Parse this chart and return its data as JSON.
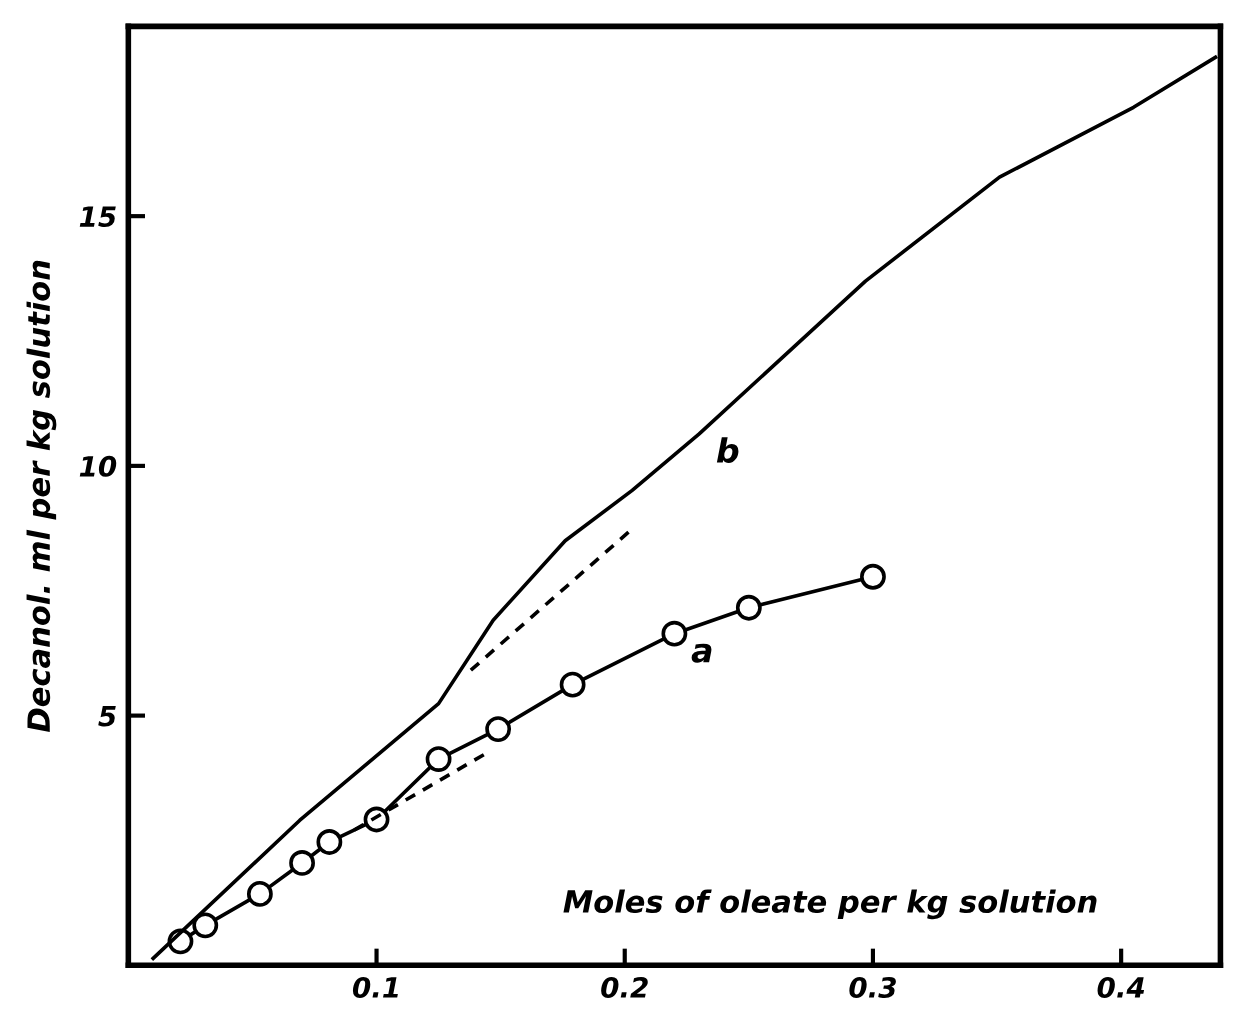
{
  "chart_data": {
    "type": "line",
    "xlabel": "Moles of oleate per kg solution",
    "ylabel": "Decanol. ml per kg solution",
    "xlim": [
      0,
      0.44
    ],
    "ylim": [
      0,
      18.8
    ],
    "xticks": [
      0.1,
      0.2,
      0.3,
      0.4
    ],
    "yticks": [
      5,
      10,
      15
    ],
    "grid": false,
    "legend": false,
    "series": [
      {
        "name": "a",
        "color": "#000000",
        "marker": "circle",
        "line_style": "solid",
        "x": [
          0.021,
          0.031,
          0.053,
          0.07,
          0.081,
          0.1,
          0.125,
          0.149,
          0.179,
          0.22,
          0.25,
          0.3
        ],
        "values": [
          0.48,
          0.8,
          1.43,
          2.05,
          2.47,
          2.92,
          4.13,
          4.73,
          5.62,
          6.64,
          7.16,
          7.78
        ]
      },
      {
        "name": "b",
        "color": "#000000",
        "marker": "none",
        "line_style": "solid",
        "x": [
          0.01,
          0.069,
          0.125,
          0.147,
          0.176,
          0.203,
          0.23,
          0.297,
          0.351,
          0.405,
          0.438
        ],
        "values": [
          0.14,
          2.9,
          5.24,
          6.91,
          8.5,
          9.51,
          10.64,
          13.7,
          15.78,
          17.18,
          18.18
        ]
      },
      {
        "color": "#000000",
        "marker": "none",
        "line_style": "dashed",
        "x": [
          0.138,
          0.204
        ],
        "values": [
          5.91,
          8.78
        ]
      },
      {
        "color": "#000000",
        "marker": "none",
        "line_style": "dashed",
        "x": [
          0.091,
          0.144
        ],
        "values": [
          2.71,
          4.24
        ]
      }
    ]
  }
}
